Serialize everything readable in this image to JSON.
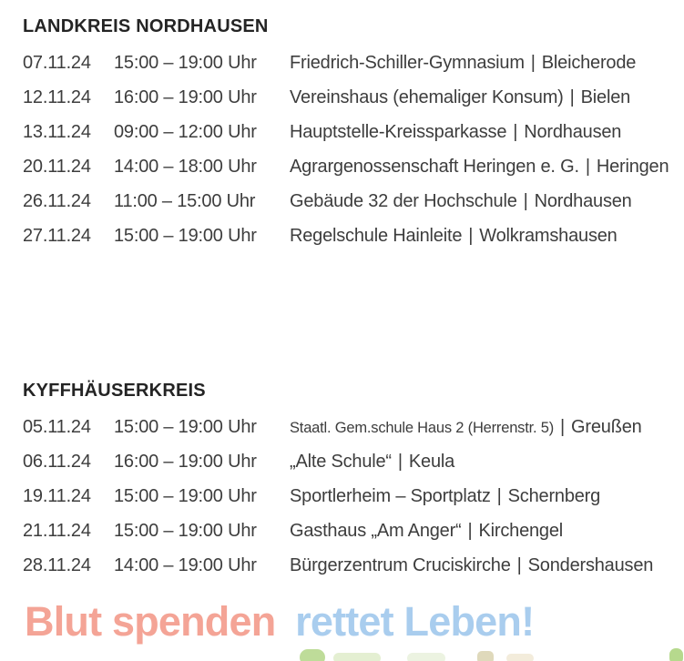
{
  "separator": "|",
  "sections": [
    {
      "title": "LANDKREIS NORDHAUSEN",
      "rows": [
        {
          "date": "07.11.24",
          "time": "15:00 – 19:00 Uhr",
          "venue": "Friedrich-Schiller-Gymnasium",
          "city": "Bleicherode"
        },
        {
          "date": "12.11.24",
          "time": "16:00 – 19:00 Uhr",
          "venue": "Vereinshaus (ehemaliger Konsum)",
          "city": "Bielen"
        },
        {
          "date": "13.11.24",
          "time": "09:00 – 12:00 Uhr",
          "venue": "Hauptstelle-Kreissparkasse",
          "city": "Nordhausen"
        },
        {
          "date": "20.11.24",
          "time": "14:00 – 18:00 Uhr",
          "venue": "Agrargenossenschaft Heringen e. G.",
          "city": "Heringen"
        },
        {
          "date": "26.11.24",
          "time": "11:00 – 15:00 Uhr",
          "venue": "Gebäude 32 der Hochschule",
          "city": "Nordhausen"
        },
        {
          "date": "27.11.24",
          "time": "15:00 – 19:00 Uhr",
          "venue": "Regelschule Hainleite",
          "city": "Wolkramshausen"
        }
      ]
    },
    {
      "title": "KYFFHÄUSERKREIS",
      "rows": [
        {
          "date": "05.11.24",
          "time": "15:00 – 19:00 Uhr",
          "venue": "Staatl. Gem.schule Haus 2 (Herrenstr. 5)",
          "city": "Greußen"
        },
        {
          "date": "06.11.24",
          "time": "16:00 – 19:00 Uhr",
          "venue": "„Alte Schule“",
          "city": "Keula"
        },
        {
          "date": "19.11.24",
          "time": "15:00 – 19:00 Uhr",
          "venue": "Sportlerheim – Sportplatz",
          "city": "Schernberg"
        },
        {
          "date": "21.11.24",
          "time": "15:00 – 19:00 Uhr",
          "venue": "Gasthaus „Am Anger“",
          "city": "Kirchengel"
        },
        {
          "date": "28.11.24",
          "time": "14:00 – 19:00 Uhr",
          "venue": "Bürgerzentrum Cruciskirche",
          "city": "Sondershausen"
        }
      ]
    }
  ],
  "slogan": {
    "part1": "Blut spenden",
    "part2": "rettet Leben!"
  },
  "colors": {
    "body_text": "#3d3d3d",
    "heading_text": "#242424",
    "slogan_red": "#f4a496",
    "slogan_blue": "#a9cdee",
    "fragment_green": "#b3d687",
    "background": "#ffffff"
  }
}
